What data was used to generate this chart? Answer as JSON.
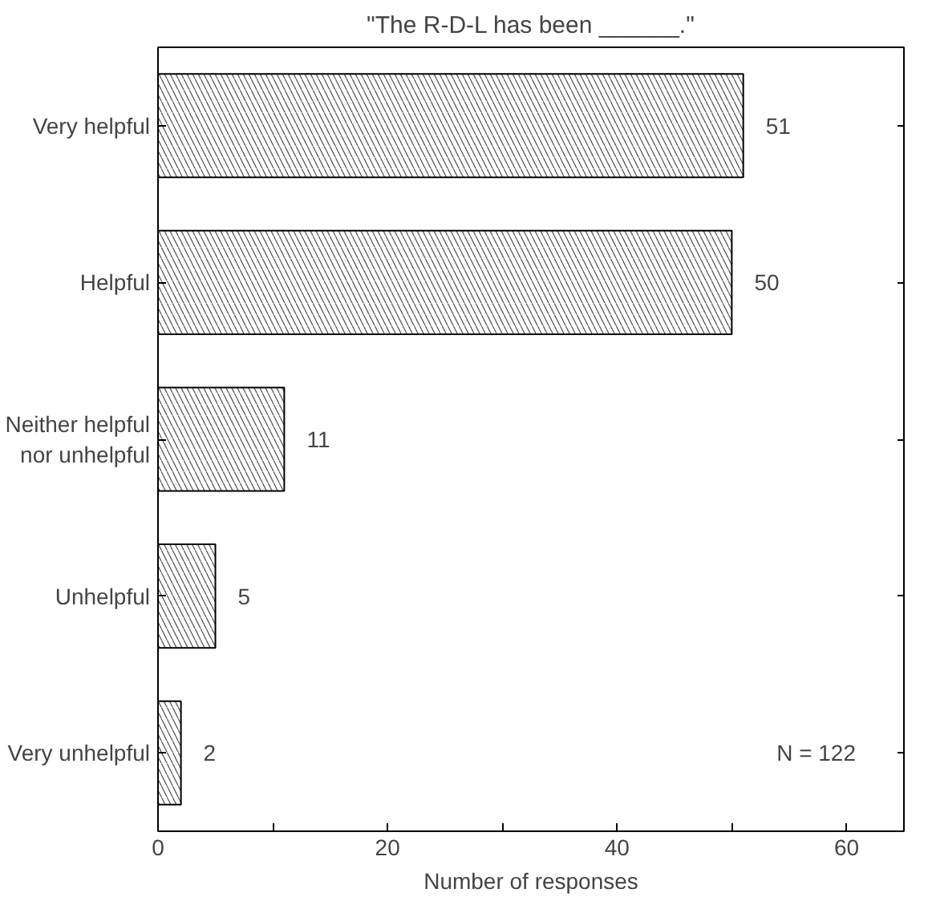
{
  "chart_data": {
    "type": "bar",
    "orientation": "horizontal",
    "title": "\"The R-D-L has been ______.\"",
    "categories": [
      "Very helpful",
      "Helpful",
      "Neither helpful\nnor unhelpful",
      "Unhelpful",
      "Very unhelpful"
    ],
    "values": [
      51,
      50,
      11,
      5,
      2
    ],
    "color": "#000000",
    "data_labels": true,
    "xlabel": "Number of responses",
    "xlim": [
      0,
      65
    ],
    "xticks": [
      0,
      {
        "value": 10,
        "label": null
      },
      20,
      {
        "value": 30,
        "label": null
      },
      40,
      {
        "value": 50,
        "label": null
      },
      60
    ],
    "annotations": [
      "N = 122"
    ],
    "grid": false
  }
}
